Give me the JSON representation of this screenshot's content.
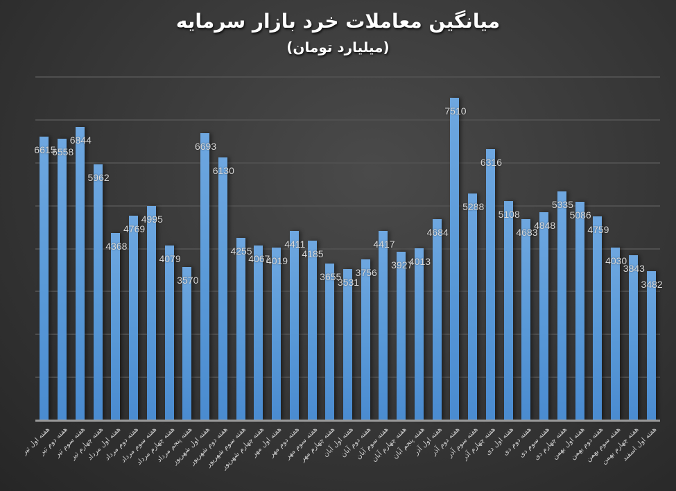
{
  "header": {
    "title": "میانگین معاملات خرد بازار سرمایه",
    "subtitle": "(میلیارد تومان)"
  },
  "colors": {
    "bar": "#5b9bd5",
    "background": "#3a3a3a",
    "gridline": "#4f4f4f",
    "text": "#d9d9d9"
  },
  "chart_data": {
    "type": "bar",
    "title": "میانگین معاملات خرد بازار سرمایه",
    "subtitle": "(میلیارد تومان)",
    "xlabel": "",
    "ylabel": "",
    "ylim": [
      0,
      8000
    ],
    "grid": true,
    "gridline_step": 1000,
    "y_axis_labels_visible": false,
    "legend": "none",
    "data_labels": true,
    "categories": [
      "هفته اول تیر",
      "هفته دوم تیر",
      "هفته سوم تیر",
      "هفته چهارم تیر",
      "هفته اول مرداد",
      "هفته دوم مرداد",
      "هفته سوم مرداد",
      "هفته چهارم مرداد",
      "هفته پنجم مرداد",
      "هفته اول شهریور",
      "هفته دوم شهریور",
      "هفته سوم شهریور",
      "هفته چهارم شهریور",
      "هفته اول مهر",
      "هفته دوم مهر",
      "هفته سوم مهر",
      "هفته چهارم مهر",
      "هفته اول آبان",
      "هفته دوم آبان",
      "هفته سوم آبان",
      "هفته چهارم آبان",
      "هفته پنجم آبان",
      "هفته اول آذر",
      "هفته دوم آذر",
      "هفته سوم آذر",
      "هفته چهارم آذر",
      "هفته اول دی",
      "هفته دوم دی",
      "هفته سوم دی",
      "هفته چهارم دی",
      "هفته اول بهمن",
      "هفته دوم بهمن",
      "هفته سوم بهمن",
      "هفته چهارم بهمن",
      "هفته اول اسفند"
    ],
    "values": [
      6615,
      6558,
      6844,
      5962,
      4368,
      4769,
      4995,
      4079,
      3570,
      6693,
      6130,
      4255,
      4067,
      4019,
      4411,
      4185,
      3655,
      3531,
      3756,
      4417,
      3927,
      4013,
      4684,
      7510,
      5288,
      6316,
      5108,
      4683,
      4848,
      5335,
      5086,
      4759,
      4030,
      3843,
      3482
    ]
  }
}
